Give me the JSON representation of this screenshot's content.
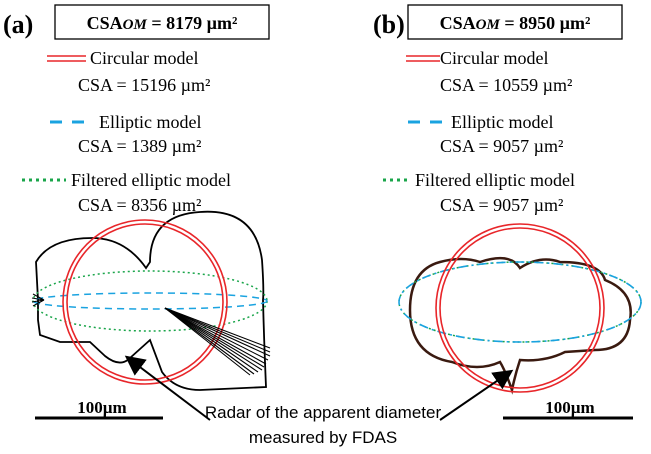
{
  "panels": [
    {
      "letter": "(a)",
      "csa_om_prefix": "CSA",
      "csa_om_subscript": "OM",
      "csa_om_value": " = 8179 µm²",
      "legend": [
        {
          "model": "Circular model",
          "csa": "CSA = 15196 µm²",
          "style": "double-solid",
          "color": "#e8262a"
        },
        {
          "model": "Elliptic model",
          "csa": "CSA = 1389 µm²",
          "style": "dashed",
          "color": "#1aa3e0"
        },
        {
          "model": "Filtered elliptic model",
          "csa": "CSA = 8356 µm²",
          "style": "dotted",
          "color": "#1aa54a"
        }
      ],
      "scale_bar": "100µm"
    },
    {
      "letter": "(b)",
      "csa_om_prefix": "CSA",
      "csa_om_subscript": "OM",
      "csa_om_value": " = 8950 µm²",
      "legend": [
        {
          "model": "Circular model",
          "csa": "CSA = 10559 µm²",
          "style": "double-solid",
          "color": "#e8262a"
        },
        {
          "model": "Elliptic model",
          "csa": "CSA = 9057 µm²",
          "style": "dashed",
          "color": "#1aa3e0"
        },
        {
          "model": "Filtered elliptic model",
          "csa": "CSA = 9057 µm²",
          "style": "dotted",
          "color": "#1aa54a"
        }
      ],
      "scale_bar": "100µm"
    }
  ],
  "annotation": {
    "line1": "Radar of the apparent diameter",
    "line2": "measured by FDAS"
  }
}
